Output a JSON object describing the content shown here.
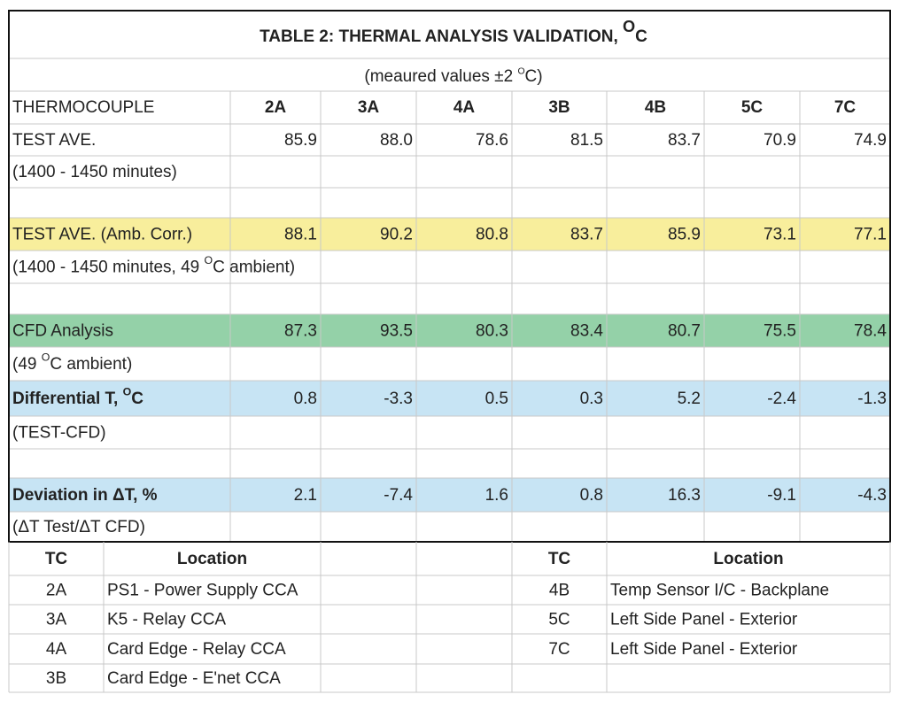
{
  "title": [
    "TABLE 2: THERMAL ANALYSIS VALIDATION, ",
    "O",
    "C"
  ],
  "subtitle": [
    "(meaured values ±2 ",
    "O",
    "C)"
  ],
  "table": {
    "header": [
      "THERMOCOUPLE",
      "2A",
      "3A",
      "4A",
      "3B",
      "4B",
      "5C",
      "7C"
    ],
    "rows": [
      {
        "label": [
          "TEST AVE."
        ],
        "values": [
          "85.9",
          "88.0",
          "78.6",
          "81.5",
          "83.7",
          "70.9",
          "74.9"
        ],
        "note": [
          "(1400 - 1450 minutes)"
        ]
      },
      {
        "label": [
          "TEST AVE. (Amb. Corr.)"
        ],
        "values": [
          "88.1",
          "90.2",
          "80.8",
          "83.7",
          "85.9",
          "73.1",
          "77.1"
        ],
        "note": [
          "(1400 - 1450 minutes, 49 ",
          "O",
          "C ambient)"
        ],
        "fill": "#f8ee9c"
      },
      {
        "label": [
          "CFD Analysis"
        ],
        "values": [
          "87.3",
          "93.5",
          "80.3",
          "83.4",
          "80.7",
          "75.5",
          "78.4"
        ],
        "note": [
          "(49 ",
          "O",
          "C ambient)"
        ],
        "fill": "#94d1a8"
      },
      {
        "label": [
          "Differential T, ",
          "O",
          "C"
        ],
        "values": [
          "0.8",
          "-3.3",
          "0.5",
          "0.3",
          "5.2",
          "-2.4",
          "-1.3"
        ],
        "note": [
          "(TEST-CFD)"
        ],
        "fill": "#c7e4f4",
        "bold": true
      },
      {
        "label": [
          "Deviation in ΔT, %"
        ],
        "values": [
          "2.1",
          "-7.4",
          "1.6",
          "0.8",
          "16.3",
          "-9.1",
          "-4.3"
        ],
        "note": [
          "(ΔT Test/ΔT CFD)"
        ],
        "fill": "#c7e4f4",
        "bold": true
      }
    ]
  },
  "legend": {
    "left": {
      "header": [
        "TC",
        "Location"
      ],
      "rows": [
        [
          "2A",
          "PS1 - Power Supply CCA"
        ],
        [
          "3A",
          "K5 - Relay CCA"
        ],
        [
          "4A",
          "Card Edge - Relay CCA"
        ],
        [
          "3B",
          "Card Edge - E'net CCA"
        ]
      ]
    },
    "right": {
      "header": [
        "TC",
        "Location"
      ],
      "rows": [
        [
          "4B",
          "Temp Sensor I/C - Backplane"
        ],
        [
          "5C",
          "Left Side Panel - Exterior"
        ],
        [
          "7C",
          "Left Side Panel - Exterior"
        ]
      ]
    }
  }
}
